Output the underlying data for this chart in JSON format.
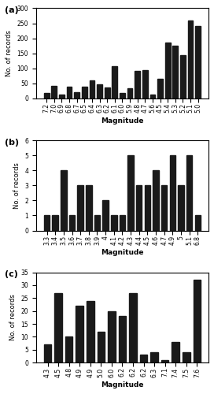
{
  "subplot_a": {
    "label": "(a)",
    "categories": [
      "7.2",
      "7.0",
      "6.9",
      "6.8",
      "6.7",
      "6.5",
      "6.4",
      "6.3",
      "6.2",
      "6.1",
      "6.0",
      "5.9",
      "4.8",
      "4.7",
      "5.6",
      "4.5",
      "5.4",
      "5.3",
      "5.2",
      "5.1",
      "5.0"
    ],
    "values": [
      18,
      42,
      12,
      38,
      20,
      40,
      60,
      48,
      37,
      107,
      18,
      33,
      92,
      95,
      12,
      65,
      185,
      176,
      143,
      260,
      242
    ],
    "ylabel": "No. of records",
    "xlabel": "Magnitude",
    "ylim": [
      0,
      300
    ],
    "yticks": [
      0,
      50,
      100,
      150,
      200,
      250,
      300
    ]
  },
  "subplot_b": {
    "label": "(b)",
    "categories": [
      "3.3",
      "3.4",
      "3.5",
      "3.6",
      "3.7",
      "3.8",
      "3.9",
      "4",
      "4.1",
      "4.2",
      "4.3",
      "4.4",
      "4.5",
      "4.6",
      "4.7",
      "4.9",
      "5",
      "5.1",
      "6.8"
    ],
    "values": [
      1,
      1,
      4,
      1,
      3,
      3,
      1,
      2,
      1,
      1,
      5,
      3,
      3,
      4,
      3,
      5,
      3,
      5,
      1
    ],
    "ylabel": "No. of records",
    "xlabel": "Magnitude",
    "ylim": [
      0,
      6
    ],
    "yticks": [
      0,
      1,
      2,
      3,
      4,
      5,
      6
    ]
  },
  "subplot_c": {
    "label": "(c)",
    "categories": [
      "4.3",
      "4.5",
      "4.8",
      "4.9",
      "4.9",
      "5.0",
      "6.0",
      "6.2",
      "6.2",
      "6.2",
      "6.3",
      "7.1",
      "7.4",
      "7.5",
      "7.6"
    ],
    "values": [
      7,
      27,
      10,
      22,
      24,
      12,
      20,
      18,
      27,
      3,
      4,
      1,
      8,
      4,
      32
    ],
    "ylabel": "No. of records",
    "xlabel": "Magnitude",
    "ylim": [
      0,
      35
    ],
    "yticks": [
      0,
      5,
      10,
      15,
      20,
      25,
      30,
      35
    ]
  },
  "bar_color": "#1a1a1a",
  "bg_color": "#ffffff",
  "figsize": [
    2.72,
    5.0
  ],
  "dpi": 100
}
